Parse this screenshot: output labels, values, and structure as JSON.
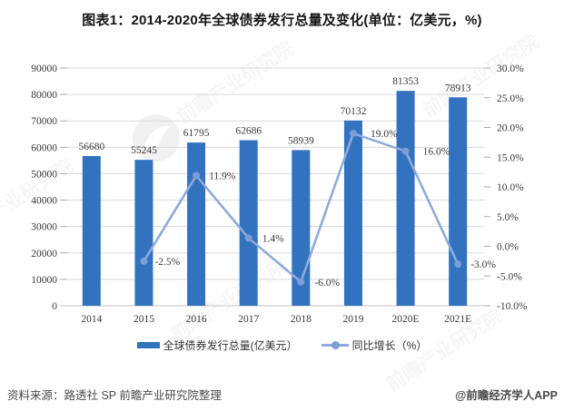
{
  "title": "图表1：2014-2020年全球债券发行总量及变化(单位：亿美元，%)",
  "chart_data": {
    "type": "combo_bar_line",
    "title": "图表1：2014-2020年全球债券发行总量及变化(单位：亿美元，%)",
    "categories": [
      "2014",
      "2015",
      "2016",
      "2017",
      "2018",
      "2019",
      "2020E",
      "2021E"
    ],
    "series": [
      {
        "name": "全球债券发行总量(亿美元）",
        "type": "bar",
        "y_axis": "left",
        "values": [
          56680,
          55245,
          61795,
          62686,
          58939,
          70132,
          81353,
          78913
        ],
        "data_labels": [
          "56680",
          "55245",
          "61795",
          "62686",
          "58939",
          "70132",
          "81353",
          "78913"
        ]
      },
      {
        "name": "同比增长（%）",
        "type": "line",
        "y_axis": "right",
        "values": [
          null,
          -2.5,
          11.9,
          1.4,
          -6.0,
          19.0,
          16.0,
          -3.0
        ],
        "data_labels": [
          "",
          "-2.5%",
          "11.9%",
          "1.4%",
          "-6.0%",
          "19.0%",
          "16.0%",
          "-3.0%"
        ]
      }
    ],
    "left_axis": {
      "min": 0,
      "max": 90000,
      "step": 10000,
      "tick_labels": [
        "0",
        "10000",
        "20000",
        "30000",
        "40000",
        "50000",
        "60000",
        "70000",
        "80000",
        "90000"
      ]
    },
    "right_axis": {
      "min": -10,
      "max": 30,
      "step": 5,
      "tick_labels": [
        "-10.0%",
        "-5.0%",
        "0.0%",
        "5.0%",
        "10.0%",
        "15.0%",
        "20.0%",
        "25.0%",
        "30.0%"
      ]
    },
    "grid": true,
    "legend_position": "bottom"
  },
  "legend": {
    "bar_label": "全球债券发行总量(亿美元）",
    "line_label": "同比增长（%）"
  },
  "footer": {
    "source": "资料来源：路透社 SP 前瞻产业研究院整理",
    "credit": "@前瞻经济学人APP"
  },
  "watermark": {
    "text": "前瞻产业研究院",
    "logo": "qianzhan-logo"
  },
  "colors": {
    "bar": "#3272BF",
    "line": "#8FAADC",
    "marker": "#7E9DD7",
    "grid": "#DADADA",
    "tick": "#ABABAB",
    "axis_line": "#C6C6C6",
    "chart_text": "#3a3a3a"
  }
}
